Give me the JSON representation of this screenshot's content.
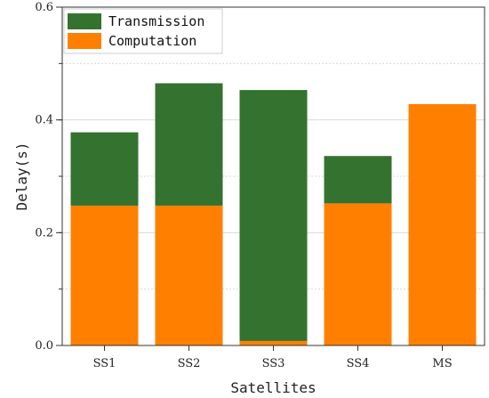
{
  "chart_data": {
    "type": "bar",
    "stacked": true,
    "categories": [
      "SS1",
      "SS2",
      "SS3",
      "SS4",
      "MS"
    ],
    "series": [
      {
        "name": "Computation",
        "values": [
          0.248,
          0.248,
          0.008,
          0.252,
          0.428
        ],
        "color": "#ff8000"
      },
      {
        "name": "Transmission",
        "values": [
          0.13,
          0.217,
          0.445,
          0.084,
          0.0
        ],
        "color": "#347230"
      }
    ],
    "xlabel": "Satellites",
    "ylabel": "Delay(s)",
    "ylim": [
      0,
      0.6
    ],
    "yticks": [
      "0.0",
      "0.2",
      "0.4",
      "0.6"
    ],
    "grid": true,
    "legend_position": "top-left"
  }
}
